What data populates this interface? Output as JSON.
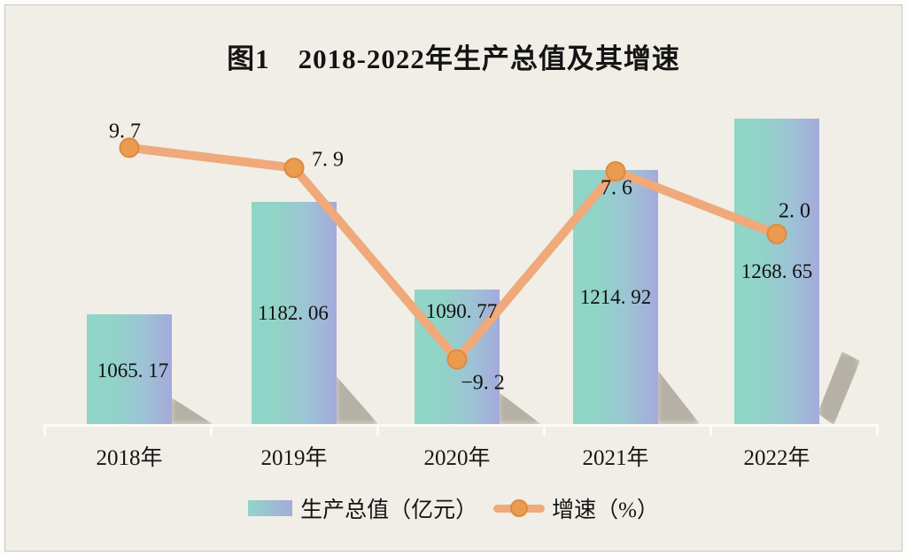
{
  "chart_data": {
    "type": "combo-bar-line",
    "title": "图1　2018-2022年生产总值及其增速",
    "categories": [
      "2018年",
      "2019年",
      "2020年",
      "2021年",
      "2022年"
    ],
    "series": [
      {
        "name": "生产总值（亿元）",
        "type": "bar",
        "values": [
          1065.17,
          1182.06,
          1090.77,
          1214.92,
          1268.65
        ],
        "value_labels": [
          "1065. 17",
          "1182. 06",
          "1090. 77",
          "1214. 92",
          "1268. 65"
        ]
      },
      {
        "name": "增速（%）",
        "type": "line",
        "values": [
          9.7,
          7.9,
          -9.2,
          7.6,
          2.0
        ],
        "value_labels": [
          "9. 7",
          "7. 9",
          "−9. 2",
          "7. 6",
          "2. 0"
        ]
      }
    ],
    "xlabel": "",
    "ylabel": "",
    "grid": false,
    "legend_position": "bottom",
    "value_axis_implied_min": 950,
    "colors": {
      "background": "#F0EEE6",
      "bar_gradient_left": "#8FD6C6",
      "bar_gradient_right": "#A5AADB",
      "line": "#EFA97A",
      "marker_fill": "#EB9B50",
      "marker_border": "#DD8A3F",
      "axis_line": "#FCFBF7",
      "label_text": "#111111"
    }
  }
}
